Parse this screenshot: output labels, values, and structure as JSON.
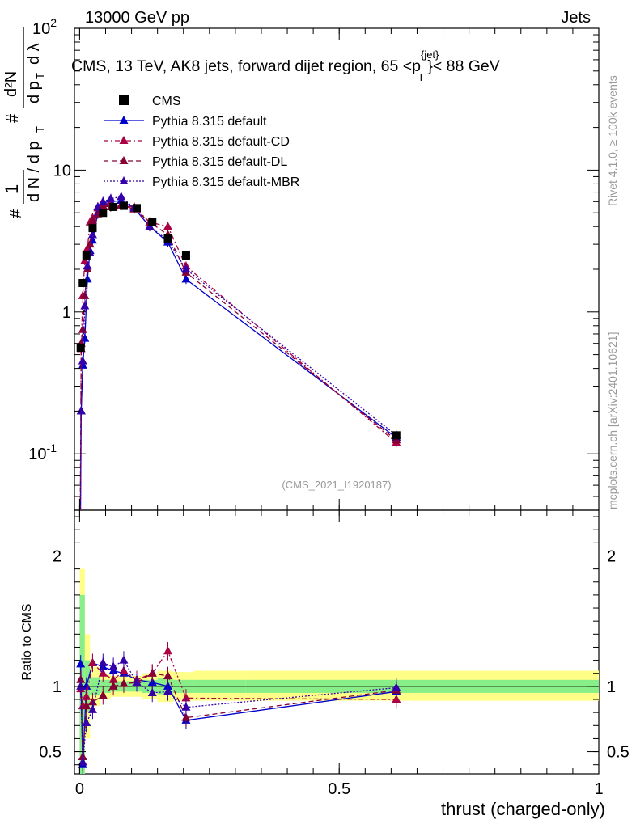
{
  "header": {
    "left": "13000 GeV pp",
    "right": "Jets"
  },
  "plot_title": "CMS, 13 TeV, AK8 jets, forward dijet region, 65 <p",
  "plot_title_sup": "{jet}",
  "plot_title_sub": "T",
  "plot_title_end": "}< 88 GeV",
  "side_labels": {
    "rivet": "Rivet 4.1.0, ≥ 100k events",
    "mcplots": "mcplots.cern.ch [arXiv:2401.10621]"
  },
  "analysis_tag": "(CMS_2021_I1920187)",
  "chart_data": {
    "type": "line",
    "xlabel": "thrust (charged-only)",
    "ylabel_main": "1/N dN/dλ (per p_T)",
    "ylabel_ratio": "Ratio to CMS",
    "xlim": [
      -0.01,
      1.0
    ],
    "main_ylim_log": [
      0.04,
      100
    ],
    "ratio_ylim": [
      0.33,
      2.35
    ],
    "x_ticks": [
      0,
      0.5,
      1
    ],
    "x_tick_labels": [
      "0",
      "0.5",
      "1"
    ],
    "main_y_ticks": [
      0.1,
      1,
      10,
      100
    ],
    "main_y_tick_labels": [
      "10^-1",
      "1",
      "10",
      "10^2"
    ],
    "ratio_y_ticks": [
      0.5,
      1,
      2
    ],
    "ratio_y_tick_labels": [
      "0.5",
      "1",
      "2"
    ],
    "legend": [
      {
        "name": "CMS",
        "style": "square"
      },
      {
        "name": "Pythia 8.315 default",
        "style": "solid"
      },
      {
        "name": "Pythia 8.315 default-CD",
        "style": "dashdot"
      },
      {
        "name": "Pythia 8.315 default-DL",
        "style": "dashed"
      },
      {
        "name": "Pythia 8.315 default-MBR",
        "style": "dotted"
      }
    ],
    "data": {
      "name": "CMS",
      "x": [
        0.002,
        0.006,
        0.013,
        0.025,
        0.045,
        0.065,
        0.085,
        0.11,
        0.14,
        0.17,
        0.205,
        0.61
      ],
      "y": [
        0.56,
        1.6,
        2.5,
        3.9,
        5.0,
        5.5,
        5.6,
        5.4,
        4.3,
        3.3,
        2.5,
        0.135
      ]
    },
    "series": [
      {
        "name": "Pythia 8.315 default",
        "color": "#0000cc",
        "x": [
          0.0,
          0.003,
          0.006,
          0.01,
          0.015,
          0.02,
          0.025,
          0.035,
          0.045,
          0.06,
          0.08,
          0.105,
          0.135,
          0.17,
          0.205,
          0.61
        ],
        "y": [
          0.005,
          0.2,
          0.42,
          0.65,
          1.7,
          2.7,
          3.2,
          5.0,
          5.9,
          6.0,
          6.1,
          5.4,
          4.0,
          3.1,
          1.7,
          0.13
        ]
      },
      {
        "name": "Pythia 8.315 default-CD",
        "color": "#aa0044",
        "x": [
          0.0,
          0.003,
          0.006,
          0.01,
          0.015,
          0.02,
          0.025,
          0.035,
          0.045,
          0.06,
          0.08,
          0.105,
          0.135,
          0.17,
          0.205,
          0.61
        ],
        "y": [
          0.005,
          0.55,
          1.3,
          2.3,
          2.8,
          4.3,
          4.6,
          5.4,
          5.8,
          5.8,
          5.6,
          5.5,
          4.3,
          4.0,
          2.1,
          0.12
        ]
      },
      {
        "name": "Pythia 8.315 default-DL",
        "color": "#880033",
        "x": [
          0.0,
          0.003,
          0.006,
          0.01,
          0.015,
          0.02,
          0.025,
          0.035,
          0.045,
          0.06,
          0.08,
          0.105,
          0.135,
          0.17,
          0.205,
          0.61
        ],
        "y": [
          0.005,
          0.6,
          0.75,
          1.3,
          2.0,
          3.0,
          4.4,
          4.9,
          5.6,
          5.5,
          5.7,
          5.3,
          4.3,
          3.5,
          1.9,
          0.125
        ]
      },
      {
        "name": "Pythia 8.315 default-MBR",
        "color": "#3300aa",
        "x": [
          0.0,
          0.003,
          0.006,
          0.01,
          0.015,
          0.02,
          0.025,
          0.035,
          0.045,
          0.06,
          0.08,
          0.105,
          0.135,
          0.17,
          0.205,
          0.61
        ],
        "y": [
          0.005,
          0.2,
          0.45,
          1.1,
          2.1,
          2.6,
          3.5,
          5.5,
          6.0,
          6.3,
          6.5,
          5.4,
          4.0,
          3.2,
          2.0,
          0.135
        ]
      }
    ],
    "ratio": {
      "band_x": [
        0.0,
        0.01,
        0.02,
        0.04,
        0.06,
        0.09,
        0.12,
        0.15,
        0.18,
        0.22,
        0.32,
        1.0
      ],
      "band_inner": [
        [
          0.3,
          1.7
        ],
        [
          0.8,
          1.2
        ],
        [
          0.93,
          1.07
        ],
        [
          0.95,
          1.05
        ],
        [
          0.96,
          1.04
        ],
        [
          0.96,
          1.04
        ],
        [
          0.95,
          1.05
        ],
        [
          0.94,
          1.06
        ],
        [
          0.95,
          1.05
        ],
        [
          0.95,
          1.05
        ],
        [
          0.95,
          1.05
        ]
      ],
      "band_outer": [
        [
          0.2,
          1.9
        ],
        [
          0.6,
          1.4
        ],
        [
          0.85,
          1.15
        ],
        [
          0.9,
          1.1
        ],
        [
          0.92,
          1.08
        ],
        [
          0.92,
          1.08
        ],
        [
          0.9,
          1.1
        ],
        [
          0.88,
          1.12
        ],
        [
          0.89,
          1.11
        ],
        [
          0.89,
          1.12
        ],
        [
          0.89,
          1.12
        ]
      ],
      "series": [
        {
          "name": "Pythia 8.315 default",
          "x": [
            0.002,
            0.006,
            0.013,
            0.025,
            0.045,
            0.065,
            0.085,
            0.11,
            0.14,
            0.17,
            0.205,
            0.61
          ],
          "y": [
            1.17,
            0.4,
            1.0,
            1.18,
            1.15,
            1.12,
            1.1,
            1.05,
            1.03,
            1.0,
            0.74,
            0.96
          ]
        },
        {
          "name": "Pythia 8.315 default-CD",
          "x": [
            0.002,
            0.006,
            0.013,
            0.025,
            0.045,
            0.065,
            0.085,
            0.11,
            0.14,
            0.17,
            0.205,
            0.61
          ],
          "y": [
            0.98,
            0.85,
            0.92,
            1.18,
            1.1,
            1.05,
            1.12,
            1.05,
            1.1,
            1.27,
            0.91,
            0.9
          ]
        },
        {
          "name": "Pythia 8.315 default-DL",
          "x": [
            0.002,
            0.006,
            0.013,
            0.025,
            0.045,
            0.065,
            0.085,
            0.11,
            0.14,
            0.17,
            0.205,
            0.61
          ],
          "y": [
            1.05,
            0.46,
            0.85,
            0.88,
            0.93,
            1.0,
            1.02,
            1.03,
            1.1,
            1.08,
            0.76,
            0.97
          ]
        },
        {
          "name": "Pythia 8.315 default-MBR",
          "x": [
            0.002,
            0.006,
            0.013,
            0.025,
            0.045,
            0.065,
            0.085,
            0.11,
            0.14,
            0.17,
            0.205,
            0.61
          ],
          "y": [
            1.0,
            0.42,
            0.72,
            0.82,
            1.18,
            1.15,
            1.2,
            1.03,
            0.95,
            0.96,
            0.84,
            0.99
          ]
        }
      ]
    }
  }
}
